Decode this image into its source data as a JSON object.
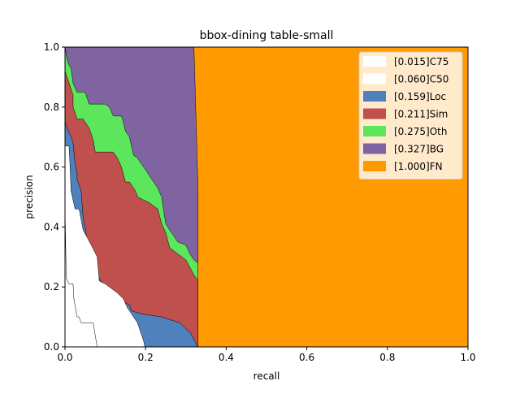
{
  "chart_data": {
    "type": "area",
    "title": "bbox-dining table-small",
    "xlabel": "recall",
    "ylabel": "precision",
    "xlim": [
      0,
      1
    ],
    "ylim": [
      0,
      1
    ],
    "xticks": [
      "0.0",
      "0.2",
      "0.4",
      "0.6",
      "0.8",
      "1.0"
    ],
    "yticks": [
      "0.0",
      "0.2",
      "0.4",
      "0.6",
      "0.8",
      "1.0"
    ],
    "grid": false,
    "legend_position": "top-right",
    "series": [
      {
        "name": "[0.015]C75",
        "color": "#ffffff",
        "curve": [
          [
            0,
            0.47
          ],
          [
            0.003,
            0.23
          ],
          [
            0.01,
            0.21
          ],
          [
            0.02,
            0.21
          ],
          [
            0.022,
            0.16
          ],
          [
            0.03,
            0.1
          ],
          [
            0.035,
            0.1
          ],
          [
            0.04,
            0.08
          ],
          [
            0.05,
            0.08
          ],
          [
            0.07,
            0.08
          ],
          [
            0.076,
            0.03
          ],
          [
            0.08,
            0
          ]
        ]
      },
      {
        "name": "[0.060]C50",
        "color": "#ffffff",
        "curve": [
          [
            0,
            0.67
          ],
          [
            0.01,
            0.67
          ],
          [
            0.012,
            0.62
          ],
          [
            0.015,
            0.52
          ],
          [
            0.025,
            0.46
          ],
          [
            0.035,
            0.46
          ],
          [
            0.045,
            0.39
          ],
          [
            0.065,
            0.34
          ],
          [
            0.08,
            0.3
          ],
          [
            0.085,
            0.22
          ],
          [
            0.1,
            0.21
          ],
          [
            0.13,
            0.18
          ],
          [
            0.145,
            0.16
          ],
          [
            0.155,
            0.13
          ],
          [
            0.18,
            0.08
          ],
          [
            0.195,
            0.02
          ],
          [
            0.198,
            0
          ]
        ]
      },
      {
        "name": "[0.159]Loc",
        "color": "#4f81bd",
        "curve": [
          [
            0,
            0.75
          ],
          [
            0.005,
            0.73
          ],
          [
            0.015,
            0.7
          ],
          [
            0.02,
            0.68
          ],
          [
            0.025,
            0.61
          ],
          [
            0.03,
            0.58
          ],
          [
            0.03,
            0.56
          ],
          [
            0.04,
            0.52
          ],
          [
            0.045,
            0.43
          ],
          [
            0.05,
            0.4
          ],
          [
            0.055,
            0.35
          ],
          [
            0.07,
            0.3
          ],
          [
            0.08,
            0.24
          ],
          [
            0.09,
            0.22
          ],
          [
            0.11,
            0.18
          ],
          [
            0.13,
            0.16
          ],
          [
            0.16,
            0.14
          ],
          [
            0.165,
            0.12
          ],
          [
            0.19,
            0.11
          ],
          [
            0.24,
            0.1
          ],
          [
            0.285,
            0.08
          ],
          [
            0.3,
            0.06
          ],
          [
            0.31,
            0.05
          ],
          [
            0.33,
            0
          ]
        ]
      },
      {
        "name": "[0.211]Sim",
        "color": "#c0504d",
        "curve": [
          [
            0,
            0.92
          ],
          [
            0.01,
            0.88
          ],
          [
            0.015,
            0.86
          ],
          [
            0.02,
            0.84
          ],
          [
            0.02,
            0.8
          ],
          [
            0.025,
            0.78
          ],
          [
            0.03,
            0.76
          ],
          [
            0.045,
            0.76
          ],
          [
            0.06,
            0.73
          ],
          [
            0.07,
            0.69
          ],
          [
            0.075,
            0.65
          ],
          [
            0.12,
            0.65
          ],
          [
            0.13,
            0.63
          ],
          [
            0.14,
            0.6
          ],
          [
            0.15,
            0.55
          ],
          [
            0.16,
            0.55
          ],
          [
            0.175,
            0.52
          ],
          [
            0.18,
            0.5
          ],
          [
            0.21,
            0.48
          ],
          [
            0.23,
            0.46
          ],
          [
            0.24,
            0.41
          ],
          [
            0.25,
            0.38
          ],
          [
            0.26,
            0.33
          ],
          [
            0.3,
            0.29
          ],
          [
            0.32,
            0.24
          ],
          [
            0.33,
            0.22
          ],
          [
            0.33,
            0
          ]
        ]
      },
      {
        "name": "[0.275]Oth",
        "color": "#5ce65c",
        "curve": [
          [
            0,
            1
          ],
          [
            0.005,
            0.96
          ],
          [
            0.01,
            0.94
          ],
          [
            0.015,
            0.93
          ],
          [
            0.02,
            0.88
          ],
          [
            0.03,
            0.85
          ],
          [
            0.05,
            0.85
          ],
          [
            0.06,
            0.81
          ],
          [
            0.1,
            0.81
          ],
          [
            0.11,
            0.8
          ],
          [
            0.12,
            0.77
          ],
          [
            0.14,
            0.77
          ],
          [
            0.145,
            0.75
          ],
          [
            0.15,
            0.72
          ],
          [
            0.16,
            0.7
          ],
          [
            0.17,
            0.64
          ],
          [
            0.18,
            0.63
          ],
          [
            0.2,
            0.59
          ],
          [
            0.23,
            0.53
          ],
          [
            0.24,
            0.5
          ],
          [
            0.25,
            0.41
          ],
          [
            0.26,
            0.39
          ],
          [
            0.27,
            0.37
          ],
          [
            0.28,
            0.35
          ],
          [
            0.3,
            0.34
          ],
          [
            0.31,
            0.31
          ],
          [
            0.32,
            0.29
          ],
          [
            0.33,
            0.28
          ],
          [
            0.33,
            0
          ]
        ]
      },
      {
        "name": "[0.327]BG",
        "color": "#8064a2",
        "curve": [
          [
            0,
            1
          ],
          [
            0.32,
            1
          ],
          [
            0.33,
            0.53
          ],
          [
            0.33,
            0
          ]
        ]
      },
      {
        "name": "[1.000]FN",
        "color": "#ff9a00",
        "curve": [
          [
            0,
            1
          ],
          [
            1,
            1
          ],
          [
            1,
            0
          ]
        ]
      }
    ]
  }
}
